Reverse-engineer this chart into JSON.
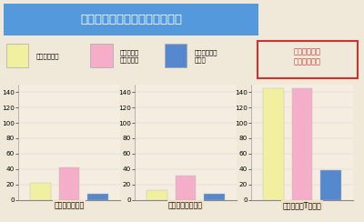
{
  "title": "防除後の衣服内に留まる汗の量",
  "title_bg": "#5599dd",
  "title_color": "#ffffff",
  "legend_labels": [
    "ビニール合羽",
    "ナイロンの\n防水防除衣",
    "透湿性素材の\n防除衣"
  ],
  "legend_label_gore": "ゴアテックス\nワークスーツ",
  "legend_colors": [
    "#f0f0a0",
    "#f5aec8",
    "#5588cc"
  ],
  "subplot_titles": [
    "防除衣（上衣）",
    "防除衣（ズボン）",
    "防除衣下のTシャツ"
  ],
  "values": [
    [
      22,
      42,
      8
    ],
    [
      13,
      32,
      8
    ],
    [
      145,
      145,
      38
    ]
  ],
  "ylim": 150,
  "yticks": [
    0,
    20,
    40,
    60,
    80,
    100,
    120,
    140
  ],
  "bg_color": "#f0e8d8",
  "plot_bg": "#f5ede0",
  "gore_edge_color": "#cc3333",
  "gore_text_color": "#cc3333"
}
